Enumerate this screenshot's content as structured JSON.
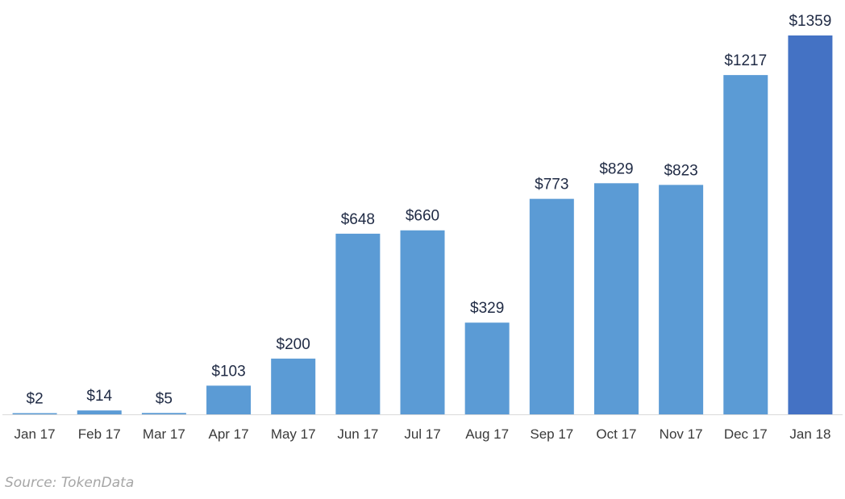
{
  "chart_data": {
    "type": "bar",
    "categories": [
      "Jan 17",
      "Feb 17",
      "Mar 17",
      "Apr 17",
      "May 17",
      "Jun 17",
      "Jul 17",
      "Aug 17",
      "Sep 17",
      "Oct 17",
      "Nov 17",
      "Dec 17",
      "Jan 18"
    ],
    "values": [
      2,
      14,
      5,
      103,
      200,
      648,
      660,
      329,
      773,
      829,
      823,
      1217,
      1359
    ],
    "value_labels": [
      "$2",
      "$14",
      "$5",
      "$103",
      "$200",
      "$648",
      "$660",
      "$329",
      "$773",
      "$829",
      "$823",
      "$1217",
      "$1359"
    ],
    "title": "",
    "xlabel": "",
    "ylabel": "",
    "ylim": [
      0,
      1359
    ],
    "grid": false,
    "legend": "none",
    "colors": {
      "bar": "#5b9bd5",
      "highlight_bar": "#4472c4",
      "axis_line": "#d9d9d9"
    },
    "highlight_index": 12
  },
  "source_note": "Source: TokenData"
}
